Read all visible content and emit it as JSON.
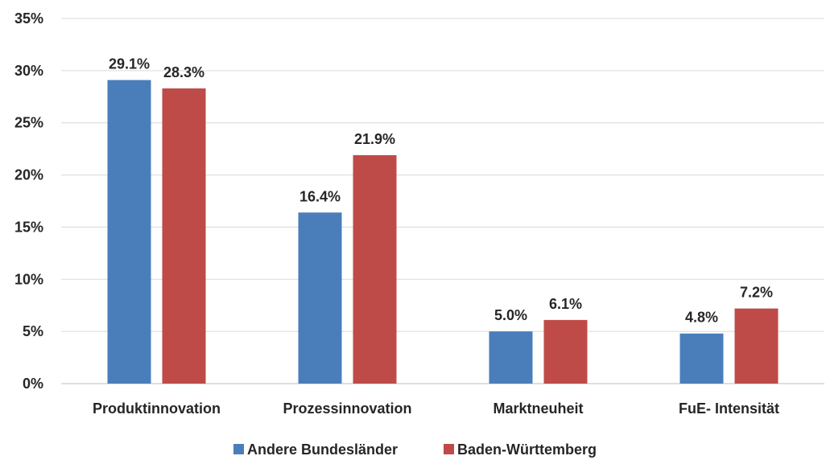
{
  "chart_data": {
    "type": "bar",
    "title": "",
    "xlabel": "",
    "ylabel": "",
    "categories": [
      "Produktinnovation",
      "Prozessinnovation",
      "Marktneuheit",
      "FuE- Intensität"
    ],
    "series": [
      {
        "name": "Andere Bundesländer",
        "color": "#4a7ebb",
        "values": [
          29.1,
          16.4,
          5.0,
          4.8
        ],
        "labels": [
          "29.1%",
          "16.4%",
          "5.0%",
          "4.8%"
        ]
      },
      {
        "name": "Baden-Württemberg",
        "color": "#be4b48",
        "values": [
          28.3,
          21.9,
          6.1,
          7.2
        ],
        "labels": [
          "28.3%",
          "21.9%",
          "6.1%",
          "7.2%"
        ]
      }
    ],
    "ylim": [
      0,
      35
    ],
    "yticks": [
      0,
      5,
      10,
      15,
      20,
      25,
      30,
      35
    ],
    "ytick_labels": [
      "0%",
      "5%",
      "10%",
      "15%",
      "20%",
      "25%",
      "30%",
      "35%"
    ],
    "grid": true,
    "legend_position": "bottom"
  }
}
